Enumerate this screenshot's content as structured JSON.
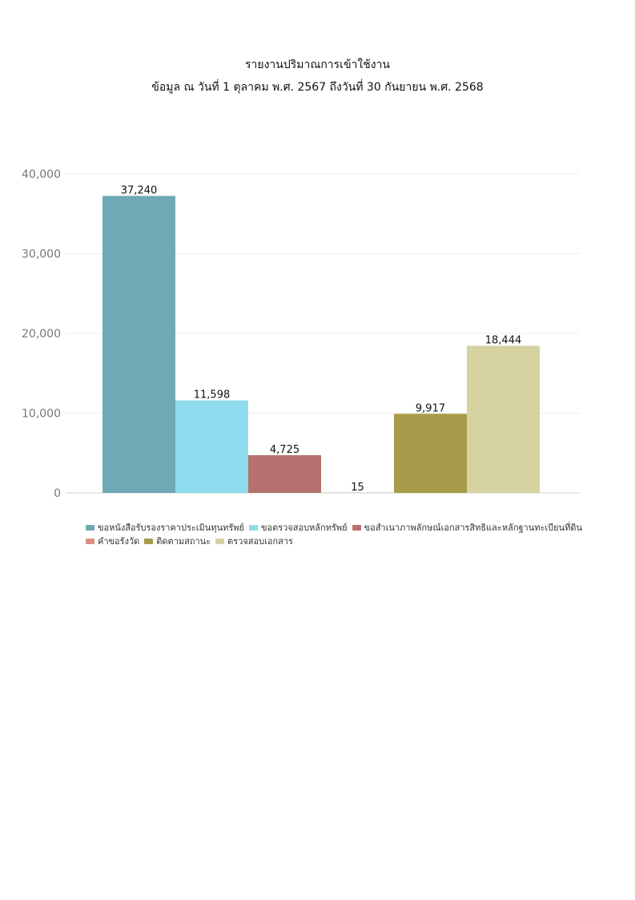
{
  "page_title": "รายงานปริมาณการเข้าใช้งาน",
  "page_subtitle": "ข้อมูล ณ วันที่ 1 ตุลาคม พ.ศ. 2567 ถึงวันที่ 30 กันยายน พ.ศ. 2568",
  "chart_data": {
    "type": "bar",
    "title": "",
    "xlabel": "",
    "ylabel": "",
    "ylim": [
      0,
      40000
    ],
    "yticks": [
      0,
      10000,
      20000,
      30000,
      40000
    ],
    "ytick_labels": [
      "0",
      "10,000",
      "20,000",
      "30,000",
      "40,000"
    ],
    "grid": true,
    "legend_position": "bottom",
    "series": [
      {
        "name": "ขอหนังสือรับรองราคาประเมินทุนทรัพย์",
        "value": 37240,
        "label": "37,240",
        "color": "#6ea9b5"
      },
      {
        "name": "ขอตรวจสอบหลักทรัพย์",
        "value": 11598,
        "label": "11,598",
        "color": "#8edced"
      },
      {
        "name": "ขอสำเนาภาพลักษณ์เอกสารสิทธิและหลักฐานทะเบียนที่ดิน",
        "value": 4725,
        "label": "4,725",
        "color": "#b5716d"
      },
      {
        "name": "คำขอรังวัด",
        "value": 15,
        "label": "15",
        "color": "#dd8f85"
      },
      {
        "name": "ติดตามสถานะ",
        "value": 9917,
        "label": "9,917",
        "color": "#a89b4a"
      },
      {
        "name": "ตรวจสอบเอกสาร",
        "value": 18444,
        "label": "18,444",
        "color": "#d6d2a2"
      }
    ]
  }
}
